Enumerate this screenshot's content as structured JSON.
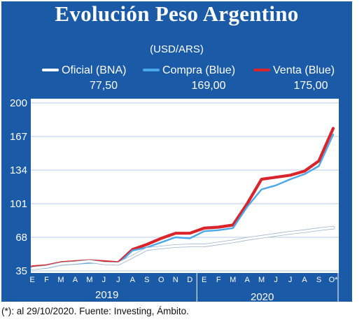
{
  "title": "Evolución Peso Argentino",
  "footnote": "(*): al 29/10/2020. Fuente: Investing, Ámbito.",
  "colors": {
    "background": "#1a5aa6",
    "oficial": "#ffffff",
    "compra": "#4aa8e8",
    "venta": "#d9242b"
  },
  "chart_data": {
    "type": "line",
    "subtitle": "(USD/ARS)",
    "x": [
      "E",
      "F",
      "M",
      "A",
      "M",
      "J",
      "J",
      "A",
      "S",
      "O",
      "N",
      "D",
      "E",
      "F",
      "M",
      "A",
      "M",
      "J",
      "J",
      "A",
      "S",
      "O*"
    ],
    "x_groups": [
      {
        "label": "2019",
        "ticks": [
          "E",
          "F",
          "M",
          "A",
          "M",
          "J",
          "J",
          "A",
          "S",
          "O",
          "N",
          "D"
        ]
      },
      {
        "label": "2020",
        "ticks": [
          "E",
          "F",
          "M",
          "A",
          "M",
          "J",
          "J",
          "A",
          "S",
          "O*"
        ]
      }
    ],
    "yticks": [
      35,
      68,
      101,
      134,
      167,
      200
    ],
    "ylim": [
      35,
      200
    ],
    "grid": true,
    "legend_position": "top",
    "series": [
      {
        "name": "Oficial (BNA)",
        "last_value": "77,50",
        "color": "#ffffff",
        "values": [
          37.5,
          39,
          42,
          43,
          44.5,
          42.5,
          42,
          49,
          56.5,
          58,
          59.5,
          60,
          60,
          62,
          64,
          66.5,
          68.5,
          70.5,
          72.5,
          74,
          76,
          77.5
        ]
      },
      {
        "name": "Compra (Blue)",
        "last_value": "169,00",
        "color": "#4aa8e8",
        "values": [
          37,
          38,
          41,
          42,
          43,
          43,
          42,
          55,
          58,
          63,
          68,
          67,
          74,
          75,
          77,
          98,
          115,
          119,
          125,
          130,
          138,
          169
        ]
      },
      {
        "name": "Venta (Blue)",
        "last_value": "175,00",
        "color": "#d9242b",
        "values": [
          39,
          40,
          43,
          44,
          45,
          44,
          43,
          56,
          61,
          67,
          72,
          72,
          77,
          78,
          80,
          101,
          125,
          127,
          129,
          133,
          143,
          175
        ]
      }
    ]
  }
}
